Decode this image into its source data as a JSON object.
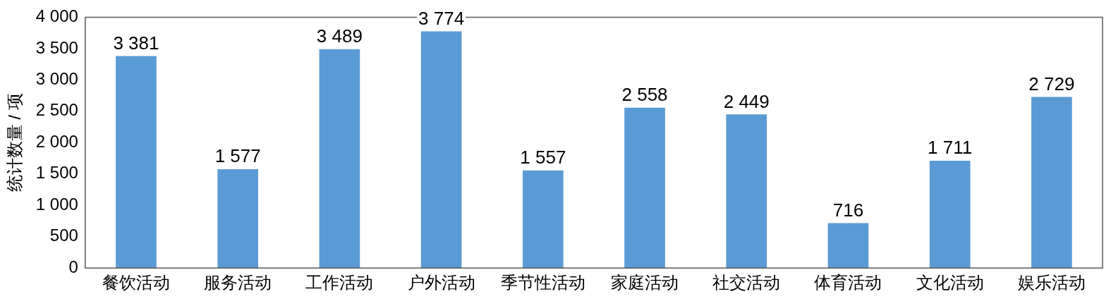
{
  "chart_data": {
    "type": "bar",
    "ylabel": "统计数量 / 项",
    "categories": [
      "餐饮活动",
      "服务活动",
      "工作活动",
      "户外活动",
      "季节性活动",
      "家庭活动",
      "社交活动",
      "体育活动",
      "文化活动",
      "娱乐活动"
    ],
    "values": [
      3381,
      1577,
      3489,
      3774,
      1557,
      2558,
      2449,
      716,
      1711,
      2729
    ],
    "value_labels": [
      "3 381",
      "1 577",
      "3 489",
      "3 774",
      "1 557",
      "2 558",
      "2 449",
      "716",
      "1 711",
      "2 729"
    ],
    "color": "#5b9bd5",
    "ylim": [
      0,
      4000
    ],
    "yticks": [
      0,
      {
        "value": 500,
        "label": "500"
      },
      {
        "value": 1000,
        "label": "1 000"
      },
      {
        "value": 1500,
        "label": "1 500"
      },
      {
        "value": 2000,
        "label": "2 000"
      },
      {
        "value": 2500,
        "label": "2 500"
      },
      {
        "value": 3000,
        "label": "3 000"
      },
      {
        "value": 3500,
        "label": "3 500"
      },
      {
        "value": 4000,
        "label": "4 000"
      }
    ],
    "grid": false,
    "legend": false
  }
}
